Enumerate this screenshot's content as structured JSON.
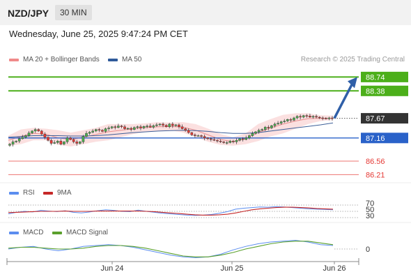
{
  "header": {
    "pair": "NZD/JPY",
    "timeframe": "30 MIN",
    "datetime": "Wednesday, June 25, 2025 9:47:24 PM CET",
    "copyright": "Research © 2025 Trading Central"
  },
  "legends": {
    "bollinger": "MA 20 + Bollinger Bands",
    "ma50": "MA 50",
    "rsi": "RSI",
    "rsi_ma": "9MA",
    "macd": "MACD",
    "macd_signal": "MACD Signal"
  },
  "colors": {
    "bull": "#4caf50",
    "bear": "#e53935",
    "target_line": "#4caf1a",
    "target_bg": "#4caf1a",
    "pivot": "#2a62c9",
    "support": "#e53935",
    "arrow": "#2f5fa8",
    "current": "#333333",
    "bb_fill": "#f9d6d6",
    "ma20": "#e88d8d",
    "ma50": "#3d5f98",
    "rsi": "#5b8def",
    "rsi_ma": "#c62828",
    "macd": "#5b8def",
    "macd_signal": "#5aa02c"
  },
  "chart_data": [
    {
      "type": "candlestick",
      "panel": "price",
      "x_labels": [
        "Jun 24",
        "Jun 25",
        "Jun 26"
      ],
      "ylim": [
        86.0,
        89.0
      ],
      "levels": [
        {
          "value": 88.74,
          "label": "88.74",
          "role": "target"
        },
        {
          "value": 88.38,
          "label": "88.38",
          "role": "target"
        },
        {
          "value": 87.67,
          "label": "87.67",
          "role": "current"
        },
        {
          "value": 87.16,
          "label": "87.16",
          "role": "pivot"
        },
        {
          "value": 86.56,
          "label": "86.56",
          "role": "support"
        },
        {
          "value": 86.21,
          "label": "86.21",
          "role": "support"
        }
      ],
      "closes": [
        87.0,
        87.06,
        87.08,
        87.14,
        87.18,
        87.22,
        87.29,
        87.34,
        87.38,
        87.34,
        87.26,
        87.18,
        87.1,
        87.02,
        87.04,
        87.08,
        87.0,
        87.06,
        87.16,
        87.12,
        87.06,
        87.02,
        87.06,
        87.2,
        87.28,
        87.31,
        87.34,
        87.38,
        87.36,
        87.33,
        87.4,
        87.42,
        87.45,
        87.43,
        87.47,
        87.45,
        87.4,
        87.41,
        87.38,
        87.43,
        87.45,
        87.42,
        87.46,
        87.47,
        87.44,
        87.48,
        87.5,
        87.52,
        87.49,
        87.45,
        87.52,
        87.48,
        87.5,
        87.45,
        87.4,
        87.36,
        87.3,
        87.24,
        87.22,
        87.22,
        87.2,
        87.16,
        87.14,
        87.12,
        87.1,
        87.08,
        87.06,
        87.04,
        87.04,
        87.08,
        87.06,
        87.1,
        87.14,
        87.12,
        87.16,
        87.22,
        87.28,
        87.32,
        87.36,
        87.38,
        87.44,
        87.42,
        87.48,
        87.52,
        87.54,
        87.58,
        87.6,
        87.64,
        87.62,
        87.68,
        87.72,
        87.7,
        87.74,
        87.73,
        87.7,
        87.72,
        87.7,
        87.68,
        87.67,
        87.66,
        87.68,
        87.67
      ],
      "ma20": [
        87.1,
        87.2,
        87.28,
        87.26,
        87.16,
        87.12,
        87.18,
        87.25,
        87.32,
        87.36,
        87.4,
        87.43,
        87.45,
        87.46,
        87.44,
        87.36,
        87.24,
        87.12,
        87.06,
        87.14,
        87.3,
        87.42,
        87.52,
        87.6,
        87.66,
        87.67,
        87.67
      ],
      "ma50": [
        87.18,
        87.2,
        87.22,
        87.22,
        87.22,
        87.21,
        87.21,
        87.22,
        87.24,
        87.27,
        87.3,
        87.32,
        87.34,
        87.35,
        87.36,
        87.35,
        87.33,
        87.3,
        87.28,
        87.28,
        87.3,
        87.34,
        87.38,
        87.42,
        87.46,
        87.5,
        87.55
      ],
      "bb_upper": [
        87.22,
        87.38,
        87.42,
        87.4,
        87.36,
        87.3,
        87.36,
        87.42,
        87.52,
        87.52,
        87.52,
        87.54,
        87.57,
        87.56,
        87.57,
        87.52,
        87.4,
        87.26,
        87.18,
        87.28,
        87.52,
        87.65,
        87.76,
        87.8,
        87.8,
        87.75,
        87.74
      ],
      "bb_lower": [
        86.95,
        87.0,
        87.1,
        87.1,
        86.98,
        86.94,
        87.0,
        87.06,
        87.1,
        87.18,
        87.26,
        87.32,
        87.34,
        87.36,
        87.3,
        87.18,
        87.06,
        86.98,
        86.96,
        87.0,
        87.08,
        87.2,
        87.28,
        87.4,
        87.52,
        87.6,
        87.62
      ],
      "forecast": {
        "from": 87.67,
        "to": 88.74
      }
    },
    {
      "type": "line",
      "panel": "rsi",
      "ylim": [
        30,
        70
      ],
      "ticks": [
        "70",
        "50",
        "30"
      ],
      "series": [
        {
          "name": "RSI",
          "values": [
            42,
            47,
            50,
            48,
            53,
            51,
            49,
            52,
            47,
            45,
            48,
            52,
            55,
            53,
            50,
            49,
            54,
            50,
            47,
            44,
            42,
            40,
            38,
            37,
            38,
            40,
            44,
            49,
            57,
            60,
            62,
            64,
            63,
            65,
            64,
            62,
            60,
            58,
            57,
            56,
            55
          ]
        },
        {
          "name": "9MA",
          "values": [
            46,
            47,
            48,
            49,
            50,
            50,
            50,
            51,
            50,
            50,
            50,
            51,
            51,
            51,
            51,
            51,
            51,
            50,
            49,
            47,
            45,
            43,
            41,
            39,
            38,
            38,
            39,
            41,
            45,
            50,
            55,
            58,
            60,
            62,
            63,
            63,
            62,
            61,
            59,
            58,
            57
          ]
        }
      ]
    },
    {
      "type": "line",
      "panel": "macd",
      "ylim": [
        -0.12,
        0.12
      ],
      "ticks": [
        "0"
      ],
      "series": [
        {
          "name": "MACD",
          "values": [
            0.0,
            0.02,
            0.03,
            0.0,
            -0.02,
            0.0,
            0.03,
            0.04,
            0.05,
            0.04,
            0.02,
            -0.01,
            -0.04,
            -0.07,
            -0.09,
            -0.1,
            -0.09,
            -0.06,
            -0.01,
            0.03,
            0.06,
            0.08,
            0.09,
            0.1,
            0.08,
            0.05,
            0.04
          ]
        },
        {
          "name": "MACD Signal",
          "values": [
            0.01,
            0.02,
            0.02,
            0.01,
            0.0,
            0.0,
            0.01,
            0.03,
            0.04,
            0.04,
            0.03,
            0.01,
            -0.02,
            -0.05,
            -0.08,
            -0.09,
            -0.09,
            -0.07,
            -0.04,
            0.0,
            0.03,
            0.06,
            0.08,
            0.09,
            0.09,
            0.07,
            0.05
          ]
        }
      ]
    }
  ]
}
